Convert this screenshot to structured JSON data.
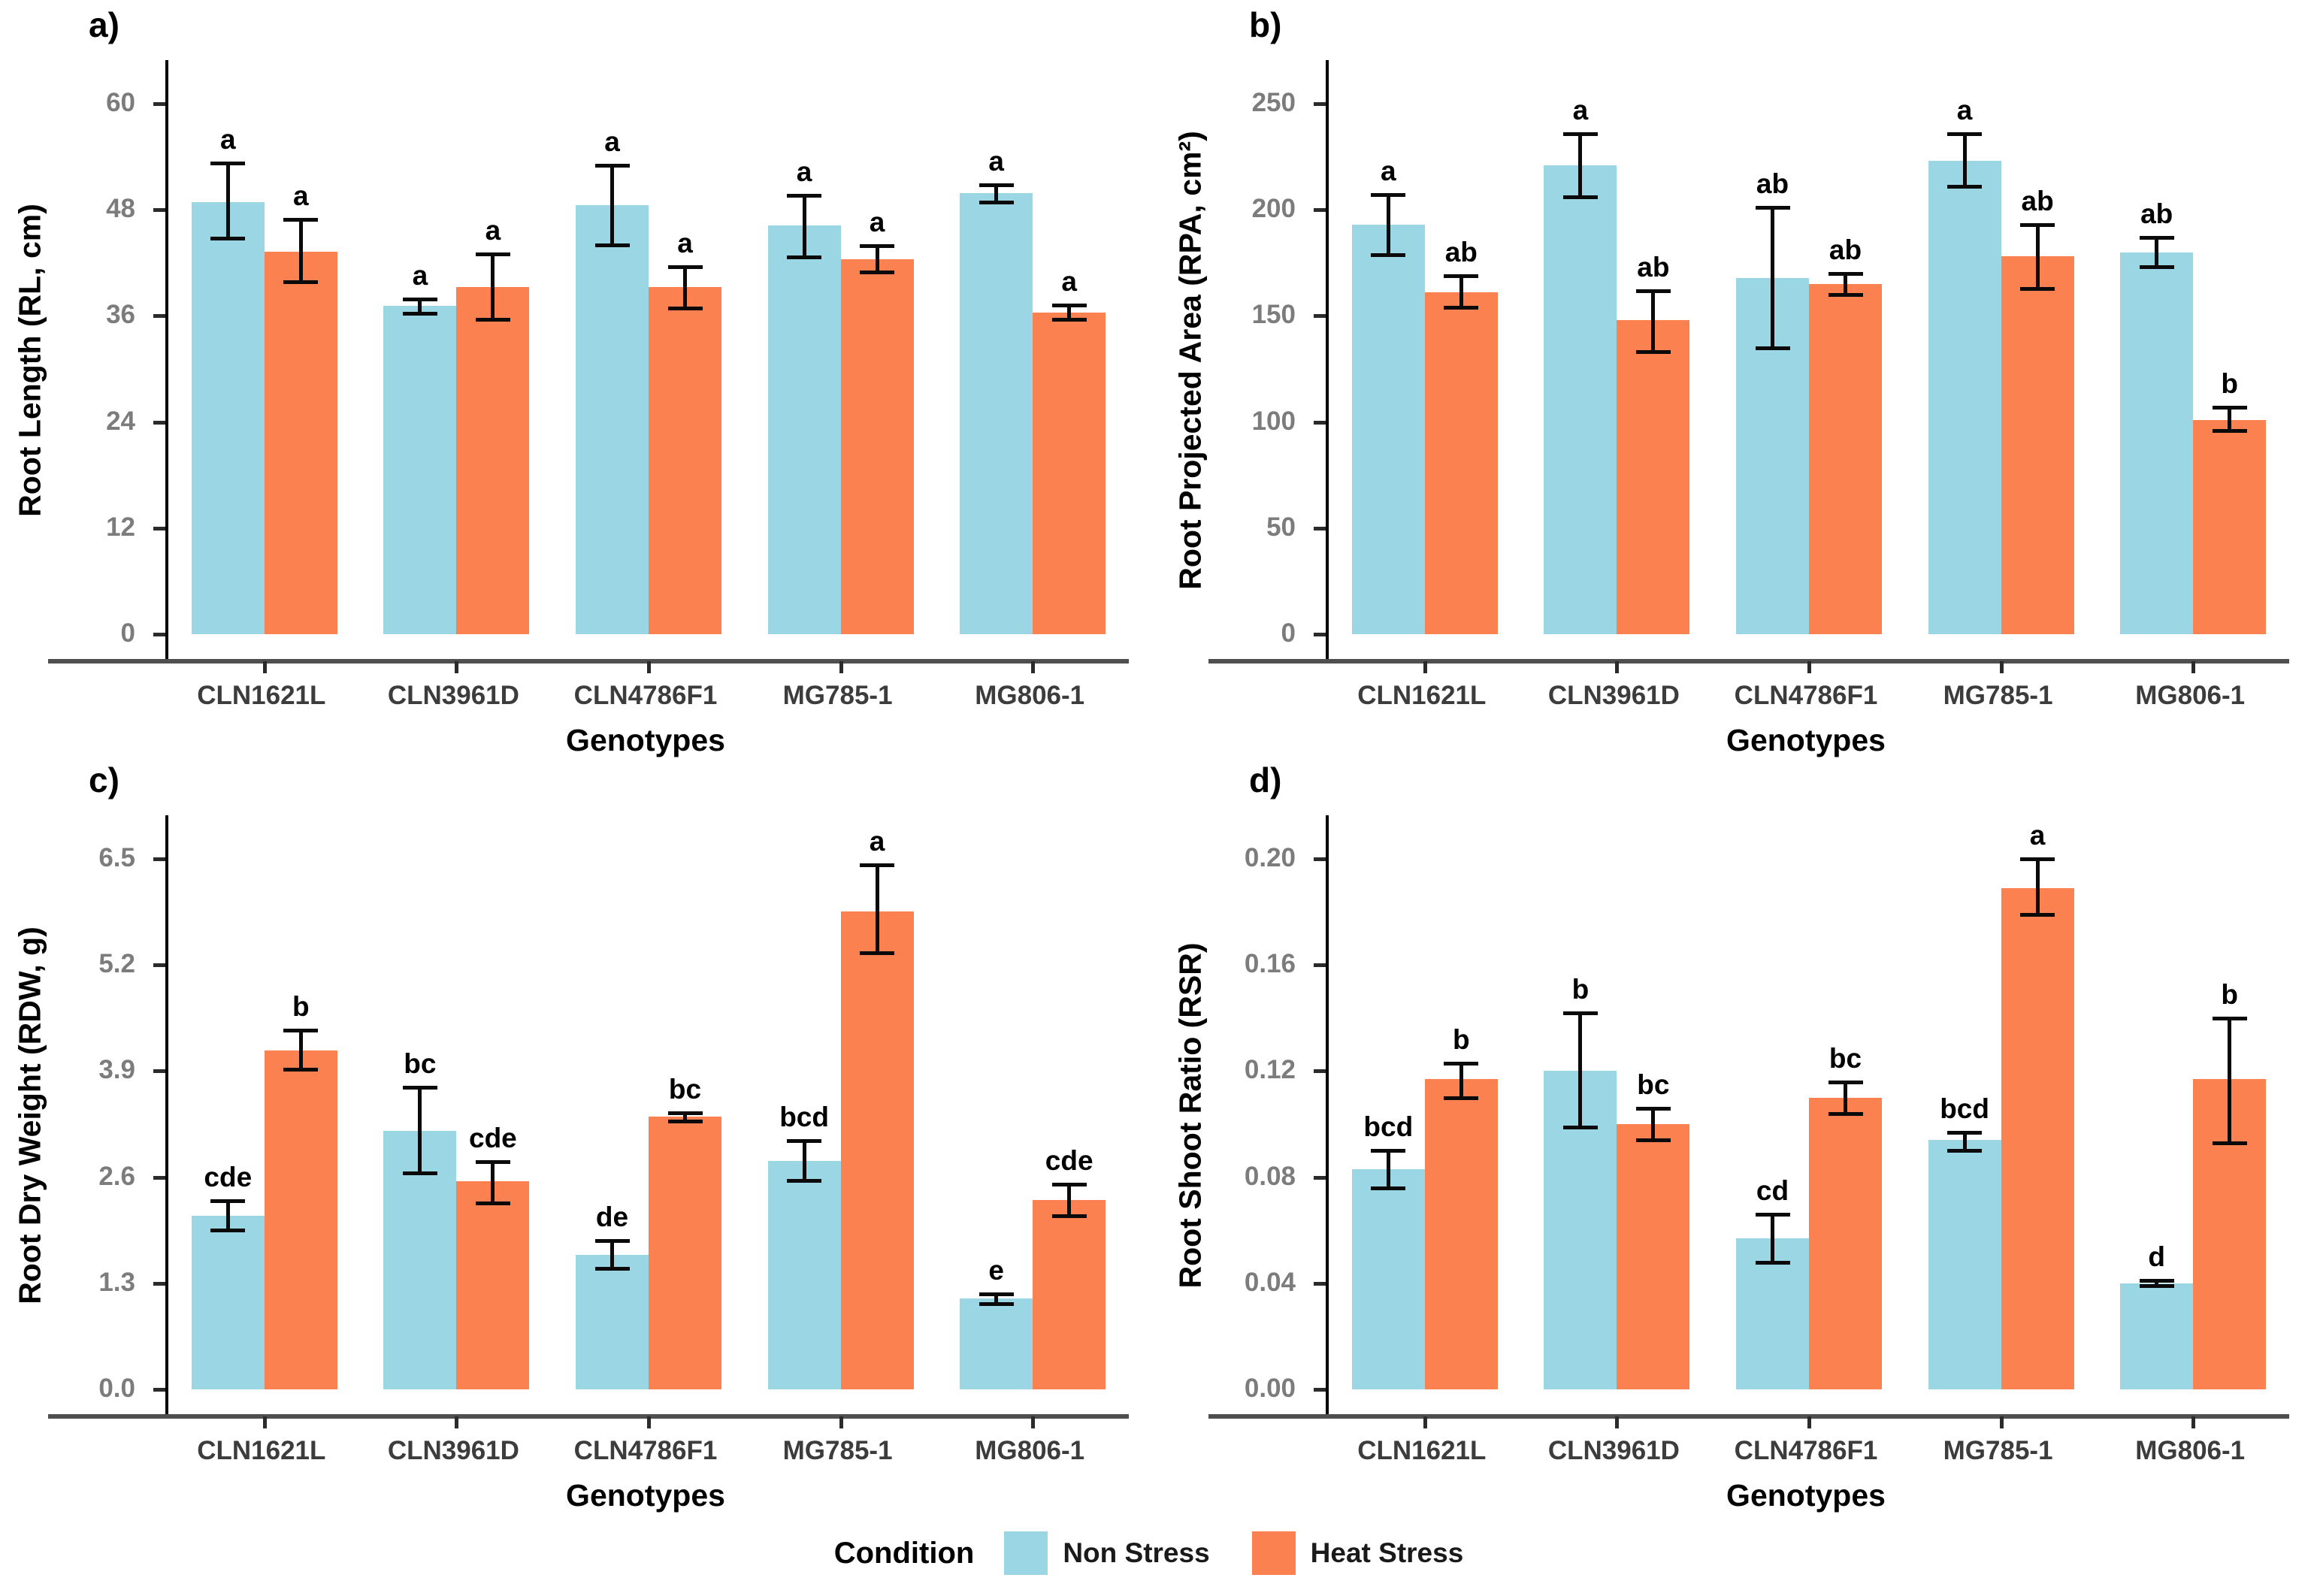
{
  "legend": {
    "title": "Condition",
    "items": [
      {
        "label": "Non Stress",
        "color": "#9AD6E3"
      },
      {
        "label": "Heat Stress",
        "color": "#FB8150"
      }
    ]
  },
  "colors": {
    "non_stress": "#9AD6E3",
    "heat_stress": "#FB8150",
    "axis_line": "#000000",
    "baseline": "#4f4f4f",
    "tick_label": "#7c7c7c",
    "category_label": "#3c3c3c"
  },
  "chart_data": [
    {
      "id": "a",
      "panel_label": "a)",
      "type": "bar",
      "title": "",
      "ylabel": "Root Length (RL, cm)",
      "xlabel": "Genotypes",
      "ylim": [
        0,
        60
      ],
      "yticks": [
        "0",
        "12",
        "24",
        "36",
        "48",
        "60"
      ],
      "grid": false,
      "categories": [
        "CLN1621L",
        "CLN3961D",
        "CLN4786F1",
        "MG785-1",
        "MG806-1"
      ],
      "series": [
        {
          "name": "Non Stress",
          "values": [
            48.9,
            37.1,
            48.5,
            46.2,
            49.9
          ],
          "err_low": [
            44.8,
            36.3,
            44.0,
            42.7,
            48.9
          ],
          "err_high": [
            53.3,
            37.9,
            53.0,
            49.6,
            50.8
          ],
          "letters": [
            "a",
            "a",
            "a",
            "a",
            "a"
          ]
        },
        {
          "name": "Heat Stress",
          "values": [
            43.3,
            39.3,
            39.3,
            42.4,
            36.4
          ],
          "err_low": [
            39.9,
            35.6,
            36.9,
            41.0,
            35.6
          ],
          "err_high": [
            46.9,
            43.0,
            41.6,
            43.9,
            37.2
          ],
          "letters": [
            "a",
            "a",
            "a",
            "a",
            "a"
          ]
        }
      ]
    },
    {
      "id": "b",
      "panel_label": "b)",
      "type": "bar",
      "title": "",
      "ylabel": "Root Projected Area (RPA, cm²)",
      "xlabel": "Genotypes",
      "ylim": [
        0,
        250
      ],
      "yticks": [
        "0",
        "50",
        "100",
        "150",
        "200",
        "250"
      ],
      "grid": false,
      "categories": [
        "CLN1621L",
        "CLN3961D",
        "CLN4786F1",
        "MG785-1",
        "MG806-1"
      ],
      "series": [
        {
          "name": "Non Stress",
          "values": [
            193,
            221,
            168,
            223,
            180
          ],
          "err_low": [
            179,
            206,
            135,
            211,
            173
          ],
          "err_high": [
            207,
            236,
            201,
            236,
            187
          ],
          "letters": [
            "a",
            "a",
            "ab",
            "a",
            "ab"
          ]
        },
        {
          "name": "Heat Stress",
          "values": [
            161,
            148,
            165,
            178,
            101
          ],
          "err_low": [
            154,
            133,
            160,
            163,
            96
          ],
          "err_high": [
            169,
            162,
            170,
            193,
            107
          ],
          "letters": [
            "ab",
            "ab",
            "ab",
            "ab",
            "b"
          ]
        }
      ]
    },
    {
      "id": "c",
      "panel_label": "c)",
      "type": "bar",
      "title": "",
      "ylabel": "Root Dry Weight (RDW, g)",
      "xlabel": "Genotypes",
      "ylim": [
        0,
        6.5
      ],
      "yticks": [
        "0.0",
        "1.3",
        "2.6",
        "3.9",
        "5.2",
        "6.5"
      ],
      "grid": false,
      "categories": [
        "CLN1621L",
        "CLN3961D",
        "CLN4786F1",
        "MG785-1",
        "MG806-1"
      ],
      "series": [
        {
          "name": "Non Stress",
          "values": [
            2.13,
            3.17,
            1.65,
            2.8,
            1.11
          ],
          "err_low": [
            1.95,
            2.65,
            1.48,
            2.56,
            1.05
          ],
          "err_high": [
            2.31,
            3.7,
            1.82,
            3.05,
            1.17
          ],
          "letters": [
            "cde",
            "bc",
            "de",
            "bcd",
            "e"
          ]
        },
        {
          "name": "Heat Stress",
          "values": [
            4.15,
            2.55,
            3.34,
            5.86,
            2.32
          ],
          "err_low": [
            3.92,
            2.28,
            3.29,
            5.35,
            2.13
          ],
          "err_high": [
            4.4,
            2.79,
            3.39,
            6.43,
            2.51
          ],
          "letters": [
            "b",
            "cde",
            "bc",
            "a",
            "cde"
          ]
        }
      ]
    },
    {
      "id": "d",
      "panel_label": "d)",
      "type": "bar",
      "title": "",
      "ylabel": "Root Shoot Ratio (RSR)",
      "xlabel": "Genotypes",
      "ylim": [
        0,
        0.2
      ],
      "yticks": [
        "0.00",
        "0.04",
        "0.08",
        "0.12",
        "0.16",
        "0.20"
      ],
      "grid": false,
      "categories": [
        "CLN1621L",
        "CLN3961D",
        "CLN4786F1",
        "MG785-1",
        "MG806-1"
      ],
      "series": [
        {
          "name": "Non Stress",
          "values": [
            0.083,
            0.12,
            0.057,
            0.094,
            0.04
          ],
          "err_low": [
            0.076,
            0.099,
            0.048,
            0.09,
            0.039
          ],
          "err_high": [
            0.09,
            0.142,
            0.066,
            0.097,
            0.041
          ],
          "letters": [
            "bcd",
            "b",
            "cd",
            "bcd",
            "d"
          ]
        },
        {
          "name": "Heat Stress",
          "values": [
            0.117,
            0.1,
            0.11,
            0.189,
            0.117
          ],
          "err_low": [
            0.11,
            0.094,
            0.104,
            0.179,
            0.093
          ],
          "err_high": [
            0.123,
            0.106,
            0.116,
            0.2,
            0.14
          ],
          "letters": [
            "b",
            "bc",
            "bc",
            "a",
            "b"
          ]
        }
      ]
    }
  ]
}
